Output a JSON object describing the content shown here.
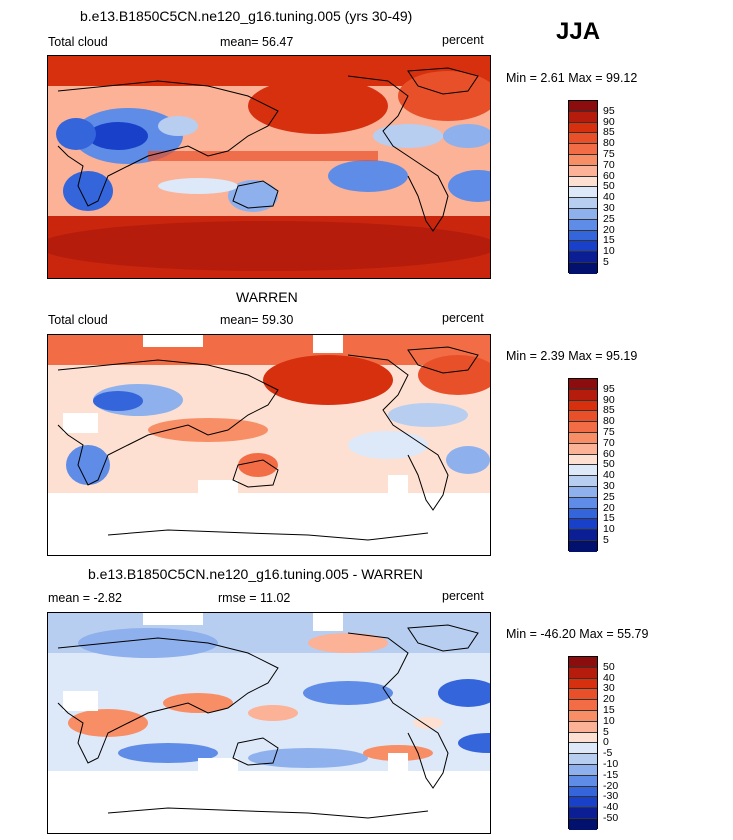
{
  "season": "JJA",
  "panels": [
    {
      "title": "b.e13.B1850C5CN.ne120_g16.tuning.005 (yrs 30-49)",
      "left_label": "Total cloud",
      "center_label": "mean=  56.47",
      "units": "percent",
      "minmax": "Min =    2.61  Max =   99.12",
      "levels": [
        "95",
        "90",
        "85",
        "80",
        "75",
        "70",
        "60",
        "50",
        "40",
        "30",
        "25",
        "20",
        "15",
        "10",
        "5"
      ],
      "colors": [
        "#8c0d0d",
        "#b51c0c",
        "#d6300f",
        "#e8502a",
        "#f26d45",
        "#f78e66",
        "#fbb296",
        "#fde0d2",
        "#dde8f8",
        "#b8cef0",
        "#8eb0ec",
        "#5e8ce6",
        "#3465db",
        "#1840c8",
        "#0b1e94",
        "#02106e"
      ]
    },
    {
      "title": "WARREN",
      "left_label": "Total cloud",
      "center_label": "mean=  59.30",
      "units": "percent",
      "minmax": "Min =    2.39  Max =   95.19",
      "levels": [
        "95",
        "90",
        "85",
        "80",
        "75",
        "70",
        "60",
        "50",
        "40",
        "30",
        "25",
        "20",
        "15",
        "10",
        "5"
      ],
      "colors": [
        "#8c0d0d",
        "#b51c0c",
        "#d6300f",
        "#e8502a",
        "#f26d45",
        "#f78e66",
        "#fbb296",
        "#fde0d2",
        "#dde8f8",
        "#b8cef0",
        "#8eb0ec",
        "#5e8ce6",
        "#3465db",
        "#1840c8",
        "#0b1e94",
        "#02106e"
      ]
    },
    {
      "title": "b.e13.B1850C5CN.ne120_g16.tuning.005 - WARREN",
      "left_label": "mean =   -2.82",
      "center_label": "rmse =   11.02",
      "units": "percent",
      "minmax": "Min = -46.20  Max =   55.79",
      "levels": [
        "50",
        "40",
        "30",
        "20",
        "15",
        "10",
        "5",
        "0",
        "-5",
        "-10",
        "-15",
        "-20",
        "-30",
        "-40",
        "-50"
      ],
      "colors": [
        "#8c0d0d",
        "#b51c0c",
        "#d6300f",
        "#e8502a",
        "#f26d45",
        "#f78e66",
        "#fbb296",
        "#fde0d2",
        "#dde8f8",
        "#b8cef0",
        "#8eb0ec",
        "#5e8ce6",
        "#3465db",
        "#1840c8",
        "#0b1e94",
        "#02106e"
      ]
    }
  ]
}
